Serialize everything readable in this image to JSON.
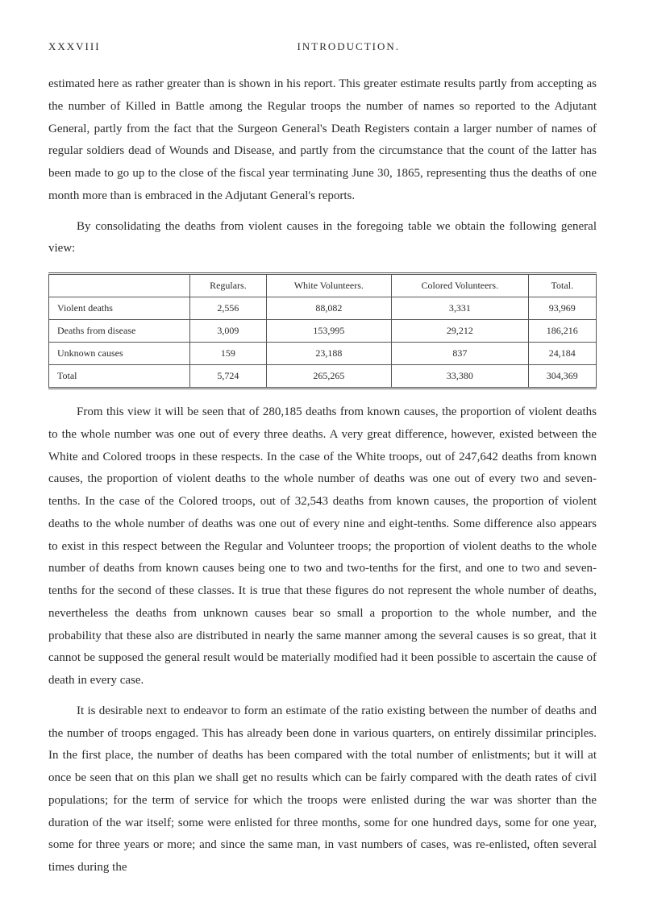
{
  "header": {
    "page_num": "XXXVIII",
    "section": "INTRODUCTION."
  },
  "paragraphs": {
    "p1": "estimated here as rather greater than is shown in his report. This greater estimate results partly from accepting as the number of Killed in Battle among the Regular troops the number of names so reported to the Adjutant General, partly from the fact that the Surgeon General's Death Registers contain a larger number of names of regular soldiers dead of Wounds and Disease, and partly from the circumstance that the count of the latter has been made to go up to the close of the fiscal year terminating June 30, 1865, representing thus the deaths of one month more than is embraced in the Adjutant General's reports.",
    "p2": "By consolidating the deaths from violent causes in the foregoing table we obtain the following general view:",
    "p3": "From this view it will be seen that of 280,185 deaths from known causes, the proportion of violent deaths to the whole number was one out of every three deaths. A very great difference, however, existed between the White and Colored troops in these respects. In the case of the White troops, out of 247,642 deaths from known causes, the proportion of violent deaths to the whole number of deaths was one out of every two and seven-tenths. In the case of the Colored troops, out of 32,543 deaths from known causes, the proportion of violent deaths to the whole number of deaths was one out of every nine and eight-tenths. Some difference also appears to exist in this respect between the Regular and Volunteer troops; the proportion of violent deaths to the whole number of deaths from known causes being one to two and two-tenths for the first, and one to two and seven-tenths for the second of these classes. It is true that these figures do not represent the whole number of deaths, nevertheless the deaths from unknown causes bear so small a proportion to the whole number, and the probability that these also are distributed in nearly the same manner among the several causes is so great, that it cannot be supposed the general result would be materially modified had it been possible to ascertain the cause of death in every case.",
    "p4": "It is desirable next to endeavor to form an estimate of the ratio existing between the number of deaths and the number of troops engaged. This has already been done in various quarters, on entirely dissimilar principles. In the first place, the number of deaths has been compared with the total number of enlistments; but it will at once be seen that on this plan we shall get no results which can be fairly compared with the death rates of civil populations; for the term of service for which the troops were enlisted during the war was shorter than the duration of the war itself; some were enlisted for three months, some for one hundred days, some for one year, some for three years or more; and since the same man, in vast numbers of cases, was re-enlisted, often several times during the"
  },
  "table": {
    "columns": [
      "",
      "Regulars.",
      "White Volunteers.",
      "Colored Volunteers.",
      "Total."
    ],
    "rows": [
      {
        "label": "Violent deaths",
        "regulars": "2,556",
        "white": "88,082",
        "colored": "3,331",
        "total": "93,969"
      },
      {
        "label": "Deaths from disease",
        "regulars": "3,009",
        "white": "153,995",
        "colored": "29,212",
        "total": "186,216"
      },
      {
        "label": "Unknown causes",
        "regulars": "159",
        "white": "23,188",
        "colored": "837",
        "total": "24,184"
      }
    ],
    "total_row": {
      "label": "Total",
      "regulars": "5,724",
      "white": "265,265",
      "colored": "33,380",
      "total": "304,369"
    }
  }
}
